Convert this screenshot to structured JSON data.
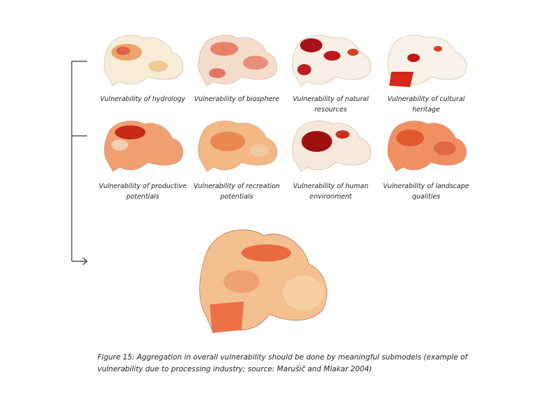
{
  "panels": [
    {
      "label": "Vulnerability of hydrology"
    },
    {
      "label": "Vulnerability of biosphere"
    },
    {
      "label": "Vulnerability of natural resources"
    },
    {
      "label": "Vulnerability of cultural heritage"
    },
    {
      "label": "Vulnerability of productive potentials"
    },
    {
      "label": "Vulnerability of recreation potentials"
    },
    {
      "label": "Vulnerability of human environment"
    },
    {
      "label": "Vulnerability of landscape qualities"
    }
  ],
  "caption": "Figure 15: Aggregation in overall vulnerability should be done by meaningful submodels (example of vulnerability due to processing industry; source: Marušič and Mlakar 2004)"
}
